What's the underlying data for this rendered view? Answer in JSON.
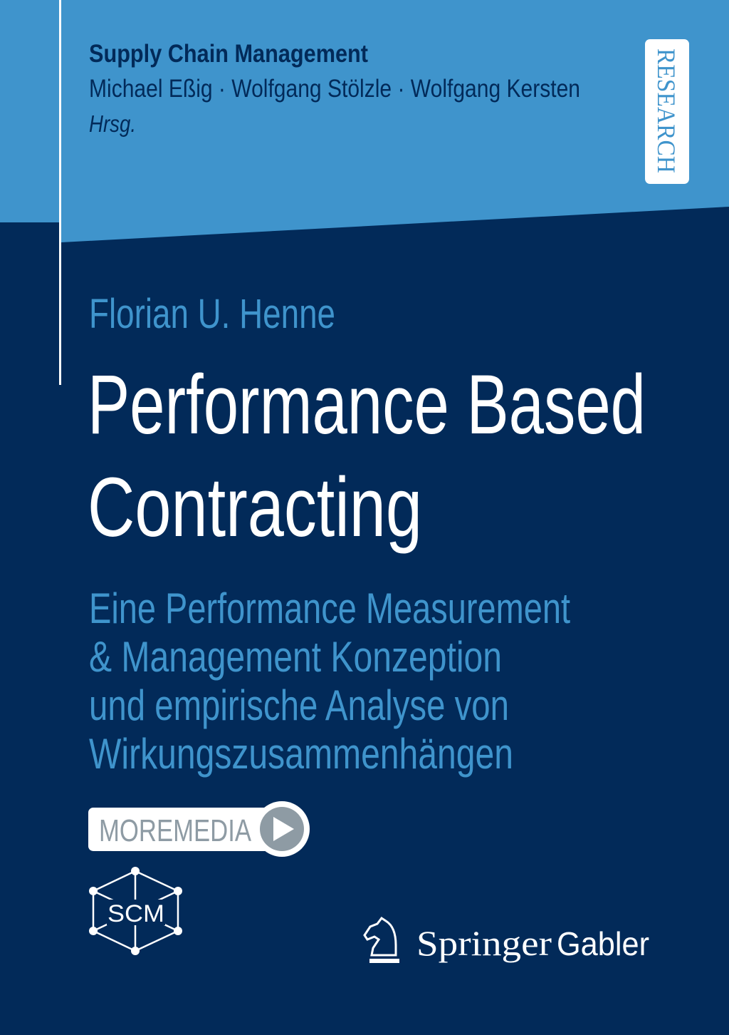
{
  "colors": {
    "light_blue": "#3f94cc",
    "navy": "#022a59",
    "white": "#ffffff",
    "moremedia_gray": "#8e9ba4"
  },
  "series": {
    "name": "Supply Chain Management",
    "editors": "Michael Eßig · Wolfgang Stölzle · Wolfgang Kersten",
    "editors_role": "Hrsg."
  },
  "badge": {
    "label": "RESEARCH"
  },
  "book": {
    "author": "Florian U. Henne",
    "title_lines": [
      "Performance Based",
      "Contracting"
    ],
    "subtitle_lines": [
      "Eine Performance Measurement",
      "& Management Konzeption",
      "und empirische Analyse von",
      "Wirkungszusammenhängen"
    ]
  },
  "moremedia": {
    "label": "MOREMEDIA",
    "icon": "play-icon"
  },
  "scm_logo": {
    "label": "SCM"
  },
  "publisher": {
    "name_serif": "Springer",
    "name_sans": "Gabler",
    "icon": "knight-horse-icon"
  }
}
